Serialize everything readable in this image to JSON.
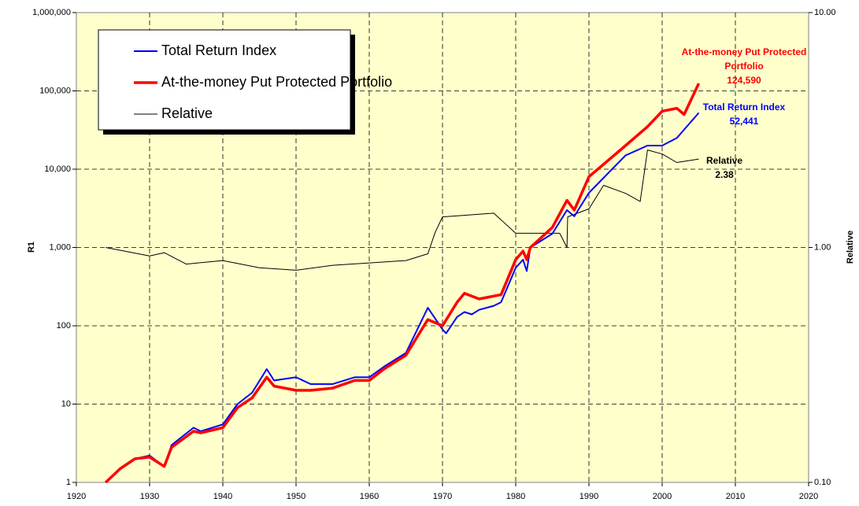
{
  "chart_data": {
    "type": "line",
    "y_log": true,
    "y2_log": true,
    "grid": true,
    "background": "#ffffcc",
    "legend": "upper left",
    "ylabel": "R1",
    "y2label": "Relative",
    "xlim": [
      1920,
      2020
    ],
    "xticks": [
      1920,
      1930,
      1940,
      1950,
      1960,
      1970,
      1980,
      1990,
      2000,
      2010,
      2020
    ],
    "ylim": [
      1,
      1000000
    ],
    "yticks": [
      {
        "value": 1,
        "label": "1"
      },
      {
        "value": 10,
        "label": "10"
      },
      {
        "value": 100,
        "label": "100"
      },
      {
        "value": 1000,
        "label": "1,000"
      },
      {
        "value": 10000,
        "label": "10,000"
      },
      {
        "value": 100000,
        "label": "100,000"
      },
      {
        "value": 1000000,
        "label": "1,000,000"
      }
    ],
    "y2lim": [
      0.1,
      10
    ],
    "y2ticks": [
      {
        "value": 0.1,
        "label": "0.10"
      },
      {
        "value": 1,
        "label": "1.00"
      },
      {
        "value": 10,
        "label": "10.00"
      }
    ],
    "series": [
      {
        "name": "Total Return Index",
        "color": "#0000ff",
        "width": 2,
        "x": [
          1924,
          1926,
          1928,
          1930,
          1932,
          1933,
          1936,
          1937,
          1940,
          1942,
          1944,
          1946,
          1947,
          1950,
          1952,
          1955,
          1958,
          1960,
          1962,
          1965,
          1968,
          1970,
          1970.5,
          1972,
          1973,
          1974,
          1975,
          1977,
          1978,
          1980,
          1981,
          1981.5,
          1982,
          1985,
          1987,
          1988,
          1990,
          1995,
          1998,
          2000,
          2002,
          2005
        ],
        "values": [
          1,
          1.5,
          2.0,
          2.2,
          1.6,
          3,
          5,
          4.5,
          5.5,
          10,
          14,
          28,
          20,
          22,
          18,
          18,
          22,
          22,
          30,
          45,
          170,
          90,
          80,
          130,
          150,
          140,
          160,
          180,
          200,
          550,
          700,
          500,
          1000,
          1500,
          3000,
          2500,
          5000,
          15000,
          20000,
          20000,
          25000,
          52441
        ]
      },
      {
        "name": "At-the-money Put Protected Portfolio",
        "color": "#ff0000",
        "width": 3.5,
        "x": [
          1924,
          1926,
          1928,
          1930,
          1932,
          1933,
          1936,
          1937,
          1940,
          1942,
          1944,
          1946,
          1947,
          1950,
          1952,
          1955,
          1958,
          1960,
          1962,
          1965,
          1968,
          1970,
          1972,
          1973,
          1975,
          1978,
          1980,
          1981,
          1981.5,
          1982,
          1985,
          1987,
          1988,
          1990,
          1995,
          1998,
          2000,
          2002,
          2003,
          2005
        ],
        "values": [
          1,
          1.5,
          2.0,
          2.1,
          1.6,
          2.8,
          4.5,
          4.3,
          5,
          9,
          12,
          22,
          17,
          15,
          15,
          16,
          20,
          20,
          28,
          42,
          120,
          100,
          200,
          260,
          220,
          250,
          700,
          900,
          700,
          1000,
          1800,
          4000,
          3000,
          8000,
          20000,
          35000,
          55000,
          60000,
          50000,
          124590
        ]
      },
      {
        "name": "Relative",
        "color": "#000000",
        "width": 1,
        "axis": "y2",
        "x": [
          1924,
          1930,
          1932,
          1935,
          1940,
          1945,
          1950,
          1955,
          1960,
          1965,
          1968,
          1969,
          1970,
          1977,
          1980,
          1986,
          1987,
          1987.1,
          1990,
          1992,
          1995,
          1997,
          1998,
          2000,
          2002,
          2005
        ],
        "values": [
          1.0,
          0.92,
          0.95,
          0.85,
          0.88,
          0.82,
          0.8,
          0.84,
          0.86,
          0.88,
          0.94,
          1.16,
          1.35,
          1.4,
          1.15,
          1.15,
          1.0,
          1.35,
          1.46,
          1.84,
          1.7,
          1.57,
          2.6,
          2.5,
          2.3,
          2.38
        ]
      }
    ],
    "annotations": [
      {
        "lines": [
          "At-the-money Put Protected",
          "Portfolio",
          "124,590"
        ],
        "color": "#ff0000"
      },
      {
        "lines": [
          "Total Return Index",
          "52,441"
        ],
        "color": "#0000ff"
      },
      {
        "lines": [
          "Relative",
          "2.38"
        ],
        "color": "#000000"
      }
    ]
  }
}
